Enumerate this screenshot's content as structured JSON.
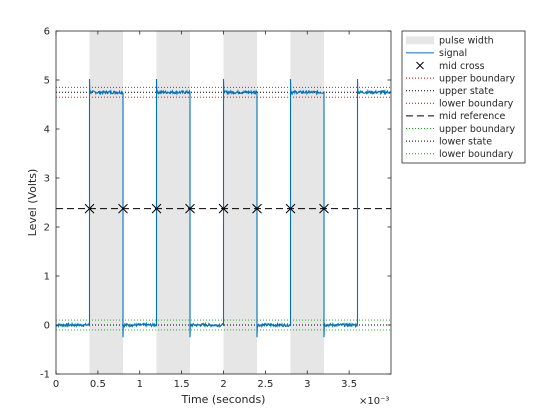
{
  "chart_data": {
    "type": "line",
    "title": "",
    "xlabel": "Time (seconds)",
    "ylabel": "Level (Volts)",
    "x_exponent_label": "×10⁻³",
    "xlim": [
      0,
      4
    ],
    "ylim": [
      -1,
      6
    ],
    "xticks": [
      0,
      0.5,
      1,
      1.5,
      2,
      2.5,
      3,
      3.5
    ],
    "xtick_labels": [
      "0",
      "0.5",
      "1",
      "1.5",
      "2",
      "2.5",
      "3",
      "3.5"
    ],
    "yticks": [
      -1,
      0,
      1,
      2,
      3,
      4,
      5,
      6
    ],
    "ytick_labels": [
      "-1",
      "0",
      "1",
      "2",
      "3",
      "4",
      "5",
      "6"
    ],
    "grid": false,
    "legend_position": "outside-top-right",
    "signal": {
      "low_level": 0.0,
      "high_level": 4.75,
      "rising_edges": [
        0.4,
        1.2,
        2.0,
        2.8,
        3.6
      ],
      "falling_edges": [
        0.8,
        1.6,
        2.4,
        3.2
      ],
      "overshoot": 5.02,
      "undershoot": -0.25,
      "color": "#0072bd"
    },
    "pulse_width_regions": [
      [
        0.4,
        0.8
      ],
      [
        1.2,
        1.6
      ],
      [
        2.0,
        2.4
      ],
      [
        2.8,
        3.2
      ]
    ],
    "mid_crosses": {
      "x": [
        0.4,
        0.8,
        1.2,
        1.6,
        2.0,
        2.4,
        2.8,
        3.2
      ],
      "y": 2.375
    },
    "reference_lines": {
      "upper_state": 4.75,
      "upper_boundary_high": 4.85,
      "upper_boundary_low": 4.65,
      "mid_reference": 2.375,
      "lower_state": 0.0,
      "lower_boundary_high": 0.1,
      "lower_boundary_low": -0.1
    },
    "legend": [
      {
        "label": "pulse width",
        "style": "patch",
        "color": "#e6e6e6"
      },
      {
        "label": "signal",
        "style": "solid",
        "color": "#0072bd"
      },
      {
        "label": "mid cross",
        "style": "marker-x",
        "color": "#000000"
      },
      {
        "label": "upper boundary",
        "style": "dotted",
        "color": "#cc0000"
      },
      {
        "label": "upper state",
        "style": "dotted",
        "color": "#000000"
      },
      {
        "label": "lower boundary",
        "style": "dotted",
        "color": "#cc0000"
      },
      {
        "label": "mid reference",
        "style": "dashed",
        "color": "#000000"
      },
      {
        "label": "upper boundary",
        "style": "dotted",
        "color": "#00b000"
      },
      {
        "label": "lower state",
        "style": "dotted",
        "color": "#000000"
      },
      {
        "label": "lower boundary",
        "style": "dotted",
        "color": "#00b000"
      }
    ]
  }
}
